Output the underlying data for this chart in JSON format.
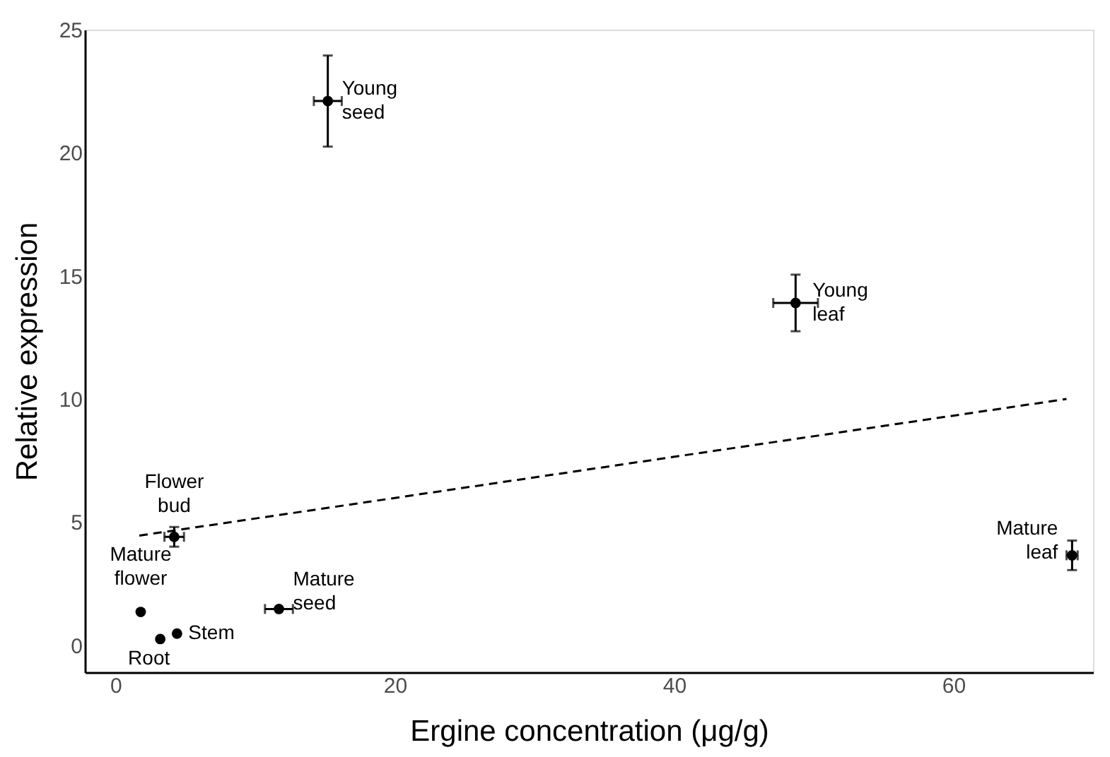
{
  "chart_data": {
    "type": "scatter",
    "xlabel": "Ergine concentration (μg/g)",
    "ylabel": "Relative expression",
    "xlim": [
      -2.2,
      70
    ],
    "ylim": [
      -1.1,
      25
    ],
    "xticks": [
      0,
      20,
      40,
      60
    ],
    "yticks": [
      0,
      5,
      10,
      15,
      20,
      25
    ],
    "grid": false,
    "series": [
      {
        "marker": "circle",
        "color": "#000000",
        "x": [
          15.2,
          48.7,
          68.5,
          4.2,
          1.8,
          3.2,
          4.4,
          11.7
        ],
        "values": [
          22.1,
          13.9,
          3.65,
          4.4,
          1.35,
          0.25,
          0.47,
          1.47
        ],
        "errors": [
          1.85,
          1.15,
          0.6,
          0.4,
          null,
          null,
          null,
          null
        ],
        "xerrors": [
          1.0,
          1.6,
          0.4,
          0.7,
          null,
          null,
          null,
          1.0
        ]
      },
      {
        "type": "line",
        "color": "#000000",
        "line_style": "dashed",
        "x": [
          1.7,
          68.1
        ],
        "values": [
          4.45,
          10.0
        ]
      }
    ],
    "annotations": [
      {
        "text": "Young seed",
        "x": 15.2,
        "y": 22.1
      },
      {
        "text": "Young leaf",
        "x": 48.7,
        "y": 13.9
      },
      {
        "text": "Mature leaf",
        "x": 68.5,
        "y": 3.65
      },
      {
        "text": "Flower bud",
        "x": 4.2,
        "y": 4.4
      },
      {
        "text": "Mature flower",
        "x": 1.8,
        "y": 1.35
      },
      {
        "text": "Root",
        "x": 3.2,
        "y": 0.25
      },
      {
        "text": "Stem",
        "x": 4.4,
        "y": 0.47
      },
      {
        "text": "Mature seed",
        "x": 11.7,
        "y": 1.47
      }
    ]
  }
}
